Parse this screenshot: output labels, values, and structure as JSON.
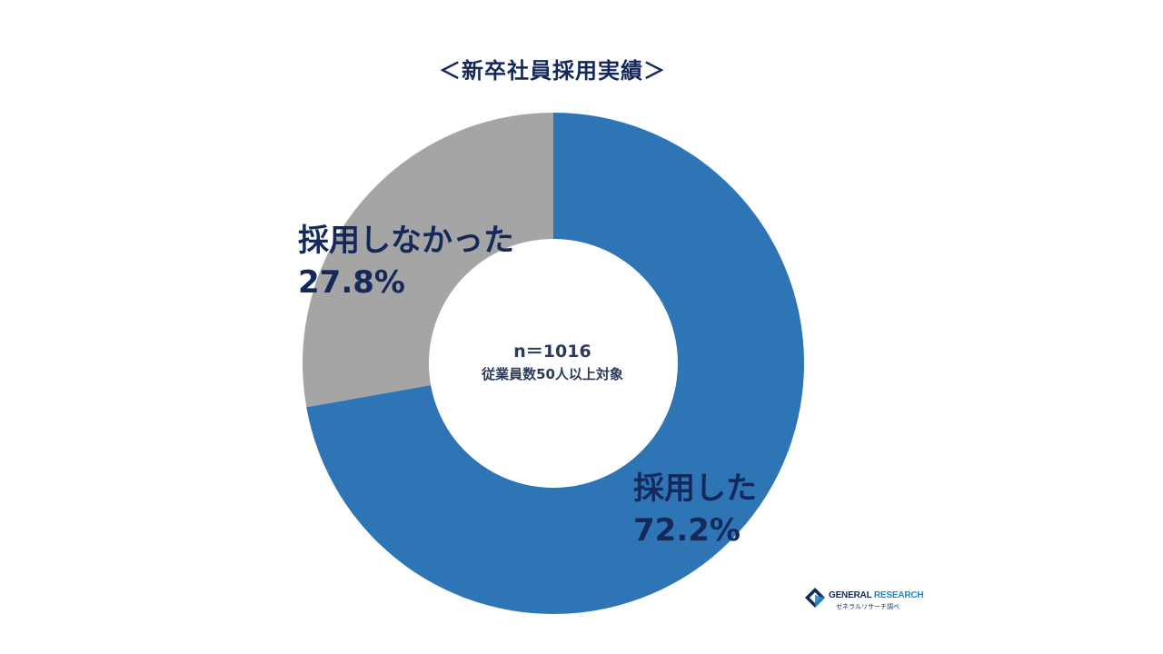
{
  "chart_data": {
    "type": "pie",
    "title": "＜新卒社員採用実績＞",
    "center_text": "n＝1016",
    "center_subtext": "従業員数50人以上対象",
    "slices": [
      {
        "label": "採用した",
        "value": 72.2,
        "value_label": "72.2%",
        "color": "#2e75b6"
      },
      {
        "label": "採用しなかった",
        "value": 27.8,
        "value_label": "27.8%",
        "color": "#a5a5a5"
      }
    ]
  },
  "logo": {
    "brand_part1": "GENERAL",
    "brand_part2": "RESEARCH",
    "subtitle": "ゼネラルリサーチ調べ"
  }
}
